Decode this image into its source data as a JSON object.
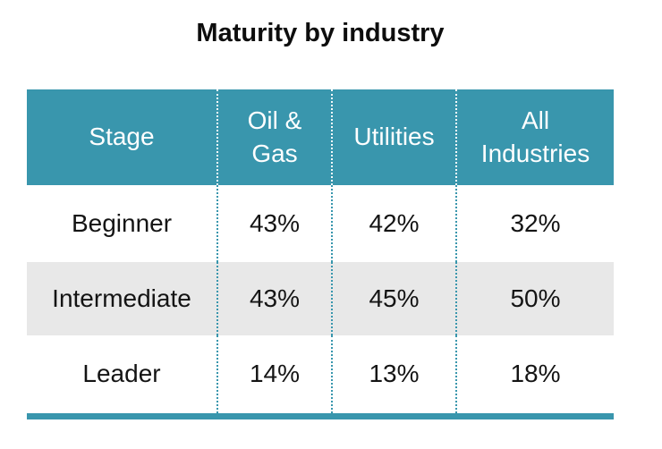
{
  "title": "Maturity by industry",
  "colors": {
    "teal": "#3996ad",
    "row_alt": "#e8e8e8",
    "text": "#141414"
  },
  "table": {
    "columns": [
      "Stage",
      "Oil &\nGas",
      "Utilities",
      "All\nIndustries"
    ],
    "rows": [
      {
        "stage": "Beginner",
        "values": [
          "43%",
          "42%",
          "32%"
        ]
      },
      {
        "stage": "Intermediate",
        "values": [
          "43%",
          "45%",
          "50%"
        ]
      },
      {
        "stage": "Leader",
        "values": [
          "14%",
          "13%",
          "18%"
        ]
      }
    ]
  },
  "chart_data": {
    "type": "table",
    "title": "Maturity by industry",
    "row_header_label": "Stage",
    "columns": [
      "Oil & Gas",
      "Utilities",
      "All Industries"
    ],
    "row_categories": [
      "Beginner",
      "Intermediate",
      "Leader"
    ],
    "values_percent": [
      [
        43,
        42,
        32
      ],
      [
        43,
        45,
        50
      ],
      [
        14,
        13,
        18
      ]
    ],
    "unit": "%",
    "header_bg": "#3996ad",
    "alt_row_bg": "#e8e8e8"
  }
}
